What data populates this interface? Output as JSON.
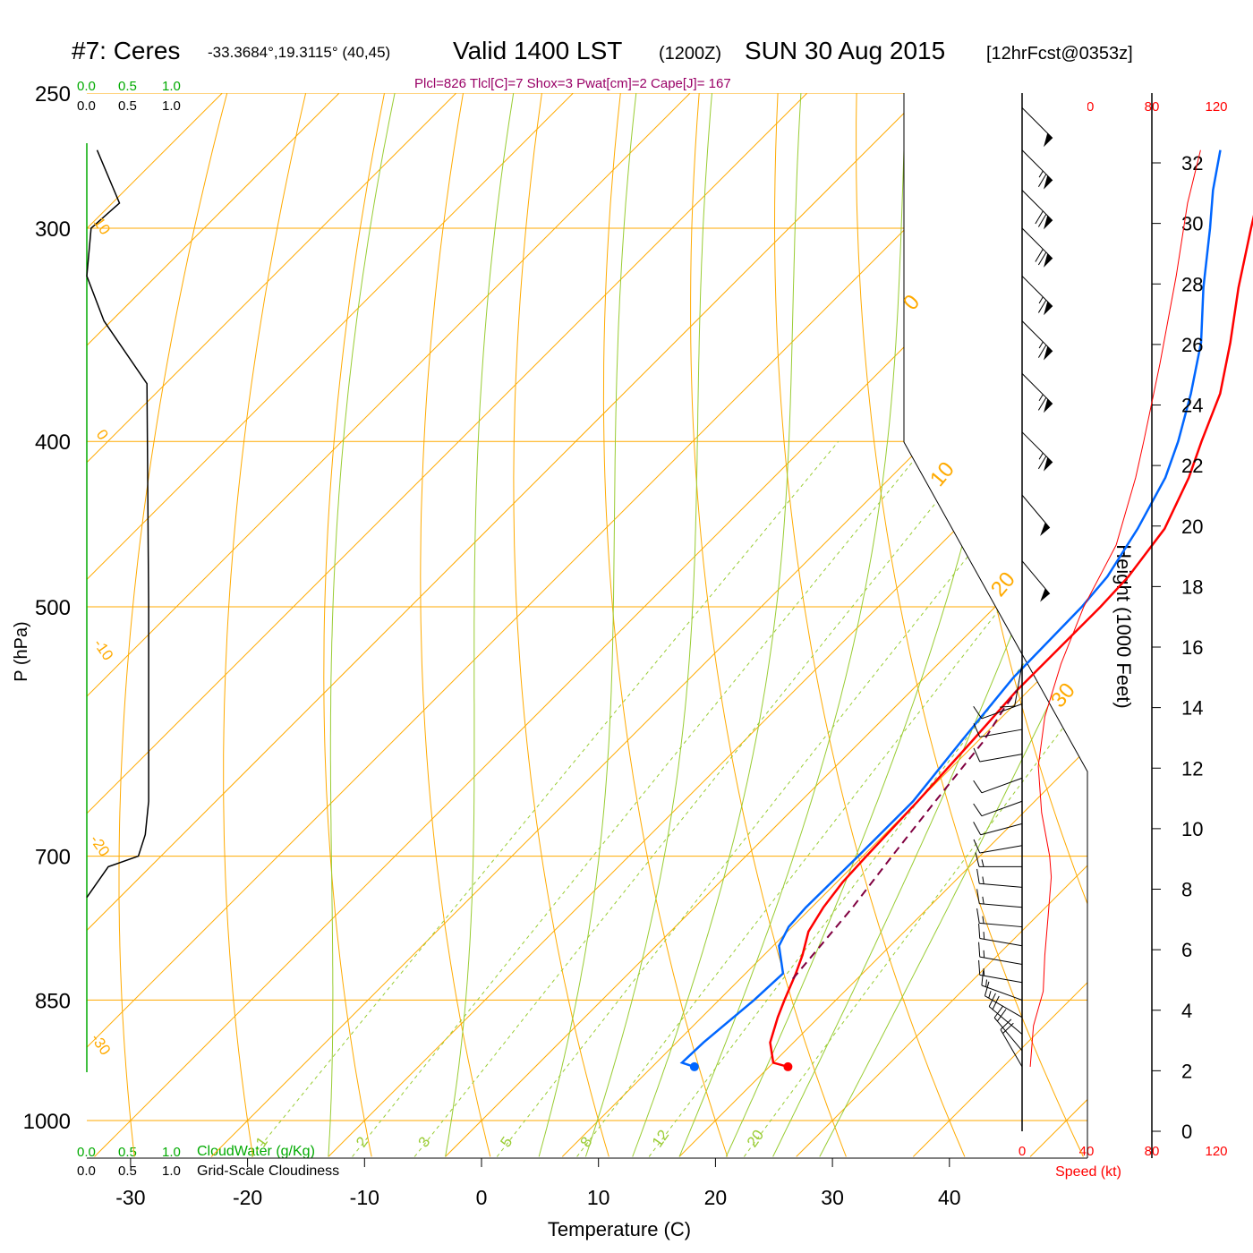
{
  "header": {
    "station": "#7: Ceres",
    "location": "-33.3684°,19.3115° (40,45)",
    "valid": "Valid 1400 LST",
    "zulu": "(1200Z)",
    "date": "SUN 30 Aug 2015",
    "forecast": "[12hrFcst@0353z]",
    "indices": "Plcl=826 Tlcl[C]=7 Shox=3 Pwat[cm]=2 Cape[J]= 167"
  },
  "labels": {
    "cloud_water": "CloudWater (g/Kg)",
    "grid_cloudiness": "Grid-Scale Cloudiness",
    "speed": "Speed (kt)",
    "pressure_axis": "P (hPa)",
    "temperature_axis": "Temperature (C)",
    "height_axis": "Height (1000 Feet)",
    "cloud_ticks": [
      "0.0",
      "0.5",
      "1.0"
    ],
    "speed_ticks": [
      "0",
      "40",
      "80",
      "120"
    ]
  },
  "colors": {
    "temperature": "#ff0000",
    "dewpoint": "#0066ff",
    "parcel": "#800040",
    "isotherm": "#ffaa00",
    "dry_adiabat": "#99cc33",
    "mixing_ratio": "#99cc33",
    "cloud": "#00aa00",
    "speed": "#ff0000",
    "index_text": "#990066"
  },
  "chart_data": {
    "type": "skew-t log-p sounding",
    "xlabel": "Temperature (C)",
    "ylabel": "P (hPa)",
    "x_ticks": [
      -30,
      -20,
      -10,
      0,
      10,
      20,
      30,
      40
    ],
    "pressure_ticks": [
      250,
      300,
      400,
      500,
      700,
      850,
      1000
    ],
    "height_ticks_kft": [
      0,
      2,
      4,
      6,
      8,
      10,
      12,
      14,
      16,
      18,
      20,
      22,
      24,
      26,
      28,
      30,
      32
    ],
    "isotherm_labels": [
      "10",
      "0",
      "-10",
      "-20",
      "-30",
      "0",
      "10",
      "20",
      "30"
    ],
    "mixing_ratio_labels": [
      "1",
      "2",
      "3",
      "5",
      "8",
      "12",
      "20"
    ],
    "temperature_profile": [
      {
        "p": 930,
        "t": 21.6
      },
      {
        "p": 925,
        "t": 20.0
      },
      {
        "p": 900,
        "t": 18.0
      },
      {
        "p": 870,
        "t": 16.5
      },
      {
        "p": 850,
        "t": 15.6
      },
      {
        "p": 820,
        "t": 14.3
      },
      {
        "p": 800,
        "t": 13.3
      },
      {
        "p": 775,
        "t": 11.8
      },
      {
        "p": 750,
        "t": 11.0
      },
      {
        "p": 725,
        "t": 10.5
      },
      {
        "p": 700,
        "t": 10.3
      },
      {
        "p": 650,
        "t": 10.0
      },
      {
        "p": 600,
        "t": 9.5
      },
      {
        "p": 560,
        "t": 9.0
      },
      {
        "p": 540,
        "t": 9.0
      },
      {
        "p": 500,
        "t": 9.0
      },
      {
        "p": 480,
        "t": 8.8
      },
      {
        "p": 450,
        "t": 7.8
      },
      {
        "p": 420,
        "t": 5.5
      },
      {
        "p": 400,
        "t": 3.5
      },
      {
        "p": 375,
        "t": 1.0
      },
      {
        "p": 350,
        "t": -2.5
      },
      {
        "p": 325,
        "t": -6.5
      },
      {
        "p": 300,
        "t": -10.5
      },
      {
        "p": 285,
        "t": -13.0
      },
      {
        "p": 270,
        "t": -15.0
      }
    ],
    "dewpoint_profile": [
      {
        "p": 930,
        "t": 13.6
      },
      {
        "p": 925,
        "t": 12.2
      },
      {
        "p": 900,
        "t": 12.3
      },
      {
        "p": 850,
        "t": 13.0
      },
      {
        "p": 820,
        "t": 13.2
      },
      {
        "p": 790,
        "t": 10.5
      },
      {
        "p": 770,
        "t": 9.7
      },
      {
        "p": 750,
        "t": 9.5
      },
      {
        "p": 700,
        "t": 9.6
      },
      {
        "p": 650,
        "t": 9.6
      },
      {
        "p": 600,
        "t": 8.6
      },
      {
        "p": 550,
        "t": 7.6
      },
      {
        "p": 500,
        "t": 7.4
      },
      {
        "p": 480,
        "t": 7.0
      },
      {
        "p": 450,
        "t": 5.5
      },
      {
        "p": 420,
        "t": 3.5
      },
      {
        "p": 400,
        "t": 1.5
      },
      {
        "p": 375,
        "t": -1.5
      },
      {
        "p": 350,
        "t": -5.0
      },
      {
        "p": 325,
        "t": -9.5
      },
      {
        "p": 300,
        "t": -14.0
      },
      {
        "p": 285,
        "t": -17.0
      },
      {
        "p": 270,
        "t": -19.8
      }
    ],
    "parcel_profile": [
      {
        "p": 826,
        "t": 14.5
      },
      {
        "p": 750,
        "t": 13.5
      },
      {
        "p": 700,
        "t": 12.5
      },
      {
        "p": 650,
        "t": 11.5
      },
      {
        "p": 600,
        "t": 10.5
      },
      {
        "p": 575,
        "t": 9.5
      },
      {
        "p": 560,
        "t": 9.0
      }
    ],
    "surface": {
      "t": 21.6,
      "td": 13.6
    },
    "cloudiness_profile": [
      {
        "p": 270,
        "v": 0.12
      },
      {
        "p": 290,
        "v": 0.38
      },
      {
        "p": 300,
        "v": 0.05
      },
      {
        "p": 320,
        "v": 0.0
      },
      {
        "p": 340,
        "v": 0.2
      },
      {
        "p": 370,
        "v": 0.7
      },
      {
        "p": 500,
        "v": 0.72
      },
      {
        "p": 600,
        "v": 0.72
      },
      {
        "p": 650,
        "v": 0.72
      },
      {
        "p": 680,
        "v": 0.68
      },
      {
        "p": 700,
        "v": 0.6
      },
      {
        "p": 710,
        "v": 0.25
      },
      {
        "p": 740,
        "v": 0.0
      }
    ],
    "wind_speed_profile": [
      {
        "p": 930,
        "kt": 5
      },
      {
        "p": 880,
        "kt": 7
      },
      {
        "p": 840,
        "kt": 13
      },
      {
        "p": 800,
        "kt": 14
      },
      {
        "p": 760,
        "kt": 16
      },
      {
        "p": 720,
        "kt": 18
      },
      {
        "p": 700,
        "kt": 17
      },
      {
        "p": 660,
        "kt": 12
      },
      {
        "p": 620,
        "kt": 10
      },
      {
        "p": 580,
        "kt": 14
      },
      {
        "p": 540,
        "kt": 24
      },
      {
        "p": 500,
        "kt": 38
      },
      {
        "p": 460,
        "kt": 58
      },
      {
        "p": 420,
        "kt": 70
      },
      {
        "p": 400,
        "kt": 75
      },
      {
        "p": 360,
        "kt": 85
      },
      {
        "p": 320,
        "kt": 95
      },
      {
        "p": 290,
        "kt": 102
      },
      {
        "p": 270,
        "kt": 110
      }
    ],
    "wind_barbs": [
      {
        "p": 930,
        "kt": 20,
        "dir": 150
      },
      {
        "p": 910,
        "kt": 20,
        "dir": 140
      },
      {
        "p": 890,
        "kt": 20,
        "dir": 130
      },
      {
        "p": 870,
        "kt": 15,
        "dir": 120
      },
      {
        "p": 850,
        "kt": 15,
        "dir": 110
      },
      {
        "p": 830,
        "kt": 15,
        "dir": 100
      },
      {
        "p": 810,
        "kt": 15,
        "dir": 100
      },
      {
        "p": 790,
        "kt": 15,
        "dir": 100
      },
      {
        "p": 770,
        "kt": 15,
        "dir": 95
      },
      {
        "p": 750,
        "kt": 15,
        "dir": 95
      },
      {
        "p": 730,
        "kt": 15,
        "dir": 95
      },
      {
        "p": 710,
        "kt": 15,
        "dir": 90
      },
      {
        "p": 690,
        "kt": 10,
        "dir": 80
      },
      {
        "p": 670,
        "kt": 10,
        "dir": 75
      },
      {
        "p": 650,
        "kt": 10,
        "dir": 70
      },
      {
        "p": 630,
        "kt": 10,
        "dir": 70
      },
      {
        "p": 610,
        "kt": 10,
        "dir": 80
      },
      {
        "p": 590,
        "kt": 10,
        "dir": 80
      },
      {
        "p": 570,
        "kt": 10,
        "dir": 70
      },
      {
        "p": 540,
        "kt": 10,
        "dir": 10
      },
      {
        "p": 470,
        "kt": 50,
        "dir": 320
      },
      {
        "p": 430,
        "kt": 50,
        "dir": 320
      },
      {
        "p": 395,
        "kt": 65,
        "dir": 315
      },
      {
        "p": 365,
        "kt": 65,
        "dir": 315
      },
      {
        "p": 340,
        "kt": 65,
        "dir": 315
      },
      {
        "p": 320,
        "kt": 65,
        "dir": 315
      },
      {
        "p": 300,
        "kt": 70,
        "dir": 315
      },
      {
        "p": 285,
        "kt": 70,
        "dir": 315
      },
      {
        "p": 270,
        "kt": 65,
        "dir": 315
      },
      {
        "p": 255,
        "kt": 50,
        "dir": 315
      }
    ],
    "grid": true
  }
}
